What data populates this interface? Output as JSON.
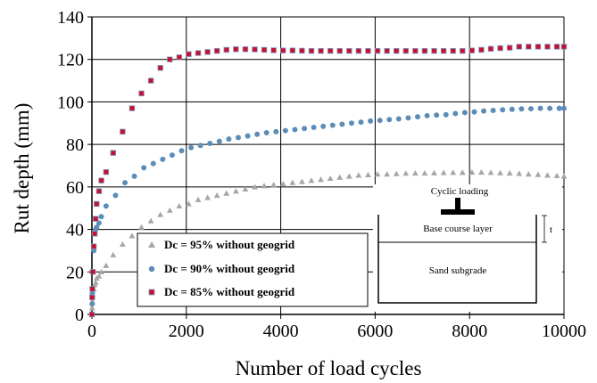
{
  "chart_data": {
    "type": "scatter",
    "xlabel": "Number of load cycles",
    "ylabel": "Rut depth (mm)",
    "xlim": [
      0,
      10000
    ],
    "ylim": [
      0,
      140
    ],
    "xticks": [
      0,
      2000,
      4000,
      6000,
      8000,
      10000
    ],
    "yticks": [
      0,
      20,
      40,
      60,
      80,
      100,
      120,
      140
    ],
    "grid": true,
    "legend_position": "bottom-center",
    "series": [
      {
        "name": "Dc = 95% without geogrid",
        "marker": "triangle",
        "color": "#a6a6a6",
        "x": [
          1,
          5,
          10,
          20,
          40,
          60,
          80,
          100,
          150,
          200,
          300,
          450,
          650,
          850,
          1050,
          1250,
          1450,
          1650,
          1850,
          2050,
          2250,
          2450,
          2650,
          2850,
          3050,
          3250,
          3450,
          3650,
          3850,
          4050,
          4250,
          4450,
          4650,
          4850,
          5050,
          5250,
          5450,
          5650,
          5850,
          6050,
          6250,
          6450,
          6650,
          6850,
          7050,
          7250,
          7450,
          7650,
          7850,
          8050,
          8250,
          8450,
          8650,
          8850,
          9050,
          9250,
          9450,
          9650,
          9850,
          10000
        ],
        "y": [
          0,
          3,
          6,
          9,
          12,
          14,
          15,
          17,
          18,
          20,
          23,
          28,
          33,
          37,
          41,
          44,
          47,
          49,
          51,
          52,
          54,
          55,
          56,
          57,
          58,
          59,
          60,
          60.5,
          61,
          61.5,
          62,
          62.5,
          63,
          63.5,
          64,
          64.5,
          65,
          65.5,
          65.7,
          66,
          66,
          66.2,
          66.4,
          66.5,
          66.5,
          66.6,
          66.7,
          66.8,
          66.8,
          66.9,
          66.9,
          66.8,
          66.6,
          66.5,
          66.3,
          66,
          65.8,
          65.5,
          65.3,
          65
        ]
      },
      {
        "name": "Dc = 90% without geogrid",
        "marker": "circle",
        "color": "#5b8db8",
        "x": [
          1,
          5,
          10,
          20,
          40,
          60,
          80,
          100,
          150,
          200,
          300,
          500,
          700,
          900,
          1100,
          1300,
          1500,
          1700,
          1900,
          2100,
          2300,
          2500,
          2700,
          2900,
          3100,
          3300,
          3500,
          3700,
          3900,
          4100,
          4300,
          4500,
          4700,
          4900,
          5100,
          5300,
          5500,
          5700,
          5900,
          6100,
          6300,
          6500,
          6700,
          6900,
          7100,
          7300,
          7500,
          7700,
          7900,
          8100,
          8300,
          8500,
          8700,
          8900,
          9100,
          9300,
          9500,
          9700,
          9900,
          10000
        ],
        "y": [
          0,
          5,
          10,
          20,
          30,
          38,
          40,
          41,
          43,
          46,
          51,
          56,
          62,
          65,
          69,
          71,
          73,
          75,
          77,
          78.5,
          79.5,
          80.5,
          81.5,
          82.5,
          83.2,
          84,
          84.8,
          85.5,
          86,
          86.5,
          87,
          87.5,
          88,
          88.5,
          89,
          89.5,
          90,
          90.5,
          91,
          91.3,
          91.7,
          92,
          92.5,
          93,
          93.5,
          93.8,
          94,
          94.5,
          95,
          95.3,
          95.7,
          96,
          96.3,
          96.5,
          96.7,
          96.8,
          97,
          97,
          97,
          97
        ]
      },
      {
        "name": "Dc = 85% without geogrid",
        "marker": "square",
        "color": "#c8102e",
        "x": [
          1,
          5,
          10,
          20,
          40,
          60,
          80,
          100,
          150,
          200,
          300,
          450,
          650,
          850,
          1050,
          1250,
          1450,
          1650,
          1850,
          2050,
          2250,
          2450,
          2650,
          2850,
          3050,
          3250,
          3450,
          3650,
          3850,
          4050,
          4250,
          4450,
          4650,
          4850,
          5050,
          5250,
          5450,
          5650,
          5850,
          6050,
          6250,
          6450,
          6650,
          6850,
          7050,
          7250,
          7450,
          7650,
          7850,
          8050,
          8250,
          8450,
          8650,
          8850,
          9050,
          9250,
          9450,
          9650,
          9850,
          10000
        ],
        "y": [
          0,
          8,
          12,
          20,
          32,
          38,
          45,
          52,
          58,
          63,
          67,
          76,
          86,
          97,
          104,
          110,
          116,
          120,
          121,
          122.5,
          123,
          123.5,
          124,
          124.5,
          124.8,
          124.8,
          124.7,
          124.5,
          124.3,
          124.2,
          124.2,
          124.1,
          124,
          124,
          124,
          124,
          124,
          124,
          124,
          124,
          124,
          124,
          124,
          124,
          124,
          124,
          124,
          124,
          124,
          124.2,
          124.5,
          125,
          125.3,
          125.5,
          126,
          126,
          126,
          126,
          126,
          126
        ]
      }
    ]
  },
  "inset": {
    "title": "Cyclic loading",
    "layer_label": "Base course layer",
    "subgrade_label": "Sand subgrade",
    "thickness_label": "t"
  }
}
